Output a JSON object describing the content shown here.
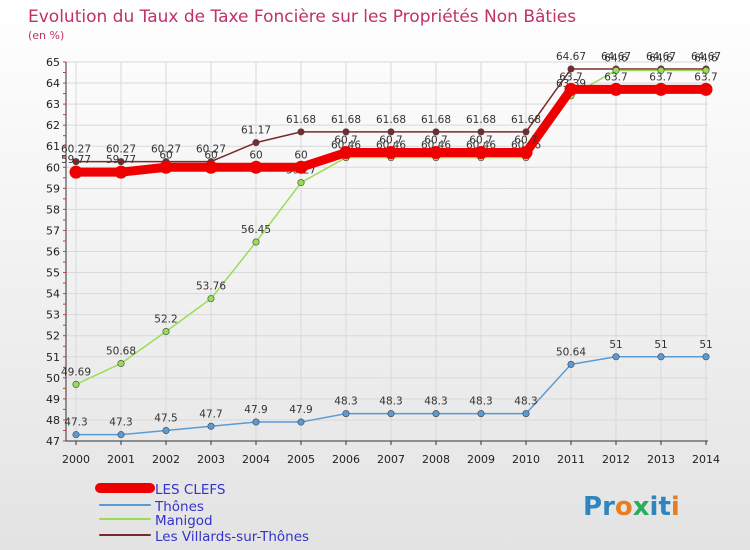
{
  "chart_data": {
    "type": "line",
    "title": "Evolution du Taux de Taxe Foncière sur les Propriétés Non Bâties",
    "subtitle": "(en %)",
    "x": [
      "2000",
      "2001",
      "2002",
      "2003",
      "2004",
      "2005",
      "2006",
      "2007",
      "2008",
      "2009",
      "2010",
      "2011",
      "2012",
      "2013",
      "2014"
    ],
    "ylim": [
      47,
      65
    ],
    "yticks": [
      47,
      48,
      49,
      50,
      51,
      52,
      53,
      54,
      55,
      56,
      57,
      58,
      59,
      60,
      61,
      62,
      63,
      64,
      65
    ],
    "grid": true,
    "legend_position": "bottom-left",
    "series": [
      {
        "name": "LES CLEFS",
        "color": "#ee0000",
        "values": [
          59.77,
          59.77,
          60,
          60,
          60,
          60,
          60.7,
          60.7,
          60.7,
          60.7,
          60.7,
          63.7,
          63.7,
          63.7,
          63.7
        ],
        "labels": [
          "59.77",
          "59.77",
          "60",
          "60",
          "60",
          "60",
          "60.7",
          "60.7",
          "60.7",
          "60.7",
          "60.7",
          "63.7",
          "63.7",
          "63.7",
          "63.7"
        ]
      },
      {
        "name": "Thônes",
        "color": "#5b9bd5",
        "values": [
          47.3,
          47.3,
          47.5,
          47.7,
          47.9,
          47.9,
          48.3,
          48.3,
          48.3,
          48.3,
          48.3,
          50.64,
          51,
          51,
          51
        ],
        "labels": [
          "47.3",
          "47.3",
          "47.5",
          "47.7",
          "47.9",
          "47.9",
          "48.3",
          "48.3",
          "48.3",
          "48.3",
          "48.3",
          "50.64",
          "51",
          "51",
          "51"
        ]
      },
      {
        "name": "Manigod",
        "color": "#99dd55",
        "values": [
          49.69,
          50.68,
          52.2,
          53.76,
          56.45,
          59.27,
          60.46,
          60.46,
          60.46,
          60.46,
          60.46,
          63.39,
          64.6,
          64.6,
          64.6
        ],
        "labels": [
          "49.69",
          "50.68",
          "52.2",
          "53.76",
          "56.45",
          "59.27",
          "60.46",
          "60.46",
          "60.46",
          "60.46",
          "60.46",
          "63.39",
          "64.6",
          "64.6",
          "64.6"
        ]
      },
      {
        "name": "Les Villards-sur-Thônes",
        "color": "#7a2a2a",
        "values": [
          60.27,
          60.27,
          60.27,
          60.27,
          61.17,
          61.68,
          61.68,
          61.68,
          61.68,
          61.68,
          61.68,
          64.67,
          64.67,
          64.67,
          64.67
        ],
        "labels": [
          "60.27",
          "60.27",
          "60.27",
          "60.27",
          "61.17",
          "61.68",
          "61.68",
          "61.68",
          "61.68",
          "61.68",
          "61.68",
          "64.67",
          "64.67",
          "64.67",
          "64.67"
        ]
      }
    ]
  },
  "brand": {
    "text": "Proxiti",
    "letters": [
      "P",
      "r",
      "o",
      "x",
      "i",
      "t",
      "i"
    ],
    "colors": [
      "#2e86c1",
      "#2e86c1",
      "#e67e22",
      "#27ae60",
      "#2e86c1",
      "#2e86c1",
      "#e67e22"
    ]
  },
  "colors": {
    "title": "#c0306a",
    "grid": "#d9d9d9",
    "legend_text": "#3333cc",
    "bg_top": "#ffffff",
    "bg_bottom": "#e3e3e3"
  }
}
